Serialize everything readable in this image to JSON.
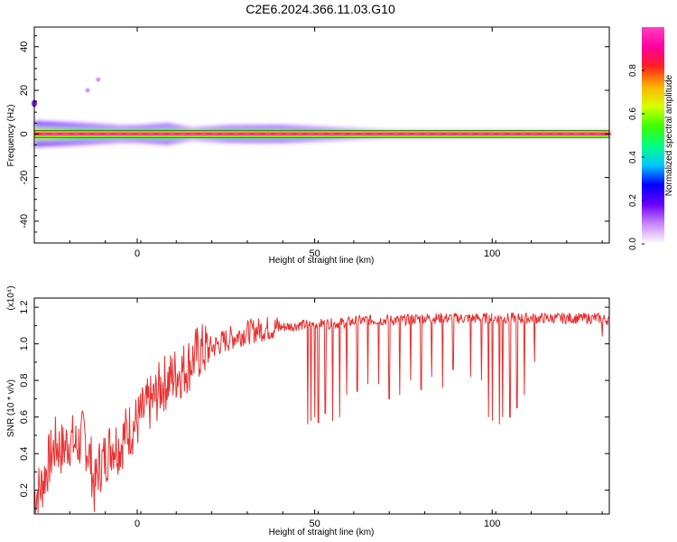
{
  "figure_title": "C2E6.2024.366.11.03.G10",
  "chart_data": [
    {
      "type": "heatmap",
      "xlabel": "Height of straight line (km)",
      "ylabel": "Frequency (Hz)",
      "xlim": [
        -29,
        133
      ],
      "ylim": [
        -50,
        49
      ],
      "x_ticks": [
        0,
        50,
        100
      ],
      "y_ticks": [
        40,
        20,
        0,
        -20,
        -40
      ],
      "colorbar": {
        "label": "Normalized spectral amplitude",
        "range": [
          0.0,
          1.0
        ],
        "ticks": [
          0.0,
          0.2,
          0.4,
          0.6,
          0.8
        ],
        "colors": [
          "#ffffff",
          "#cc88ff",
          "#6a00ff",
          "#0000ff",
          "#00c8ff",
          "#00ff80",
          "#40ff00",
          "#d8ff00",
          "#ffb000",
          "#ff2020",
          "#ff00a0",
          "#ff40c0"
        ]
      },
      "ridge": {
        "frequency": 0,
        "value": 0.95
      },
      "spectral_spread": [
        {
          "x": -29,
          "halfwidth": 6,
          "amp": 0.45
        },
        {
          "x": -15,
          "halfwidth": 5,
          "amp": 0.35
        },
        {
          "x": -5,
          "halfwidth": 4,
          "amp": 0.3
        },
        {
          "x": 0,
          "halfwidth": 4,
          "amp": 0.35
        },
        {
          "x": 8,
          "halfwidth": 5,
          "amp": 0.35
        },
        {
          "x": 15,
          "halfwidth": 3,
          "amp": 0.25
        },
        {
          "x": 25,
          "halfwidth": 4,
          "amp": 0.35
        },
        {
          "x": 40,
          "halfwidth": 4,
          "amp": 0.4
        },
        {
          "x": 55,
          "halfwidth": 3,
          "amp": 0.3
        },
        {
          "x": 70,
          "halfwidth": 2,
          "amp": 0.2
        },
        {
          "x": 90,
          "halfwidth": 2,
          "amp": 0.15
        },
        {
          "x": 133,
          "halfwidth": 2,
          "amp": 0.1
        }
      ],
      "spots": [
        {
          "x": -29,
          "y": 14
        },
        {
          "x": -14,
          "y": 20
        },
        {
          "x": -11,
          "y": 25
        }
      ]
    },
    {
      "type": "line",
      "xlabel": "Height of straight line (km)",
      "ylabel": "SNR (10 * v/v)",
      "y_multiplier": "(x10⁴)",
      "xlim": [
        -29,
        133
      ],
      "ylim": [
        0.07,
        1.25
      ],
      "x_ticks": [
        0,
        50,
        100
      ],
      "y_ticks": [
        0.2,
        0.4,
        0.6,
        0.8,
        1.0,
        1.2
      ],
      "series": [
        {
          "color": "#e83030",
          "x": [
            -29,
            -27,
            -25,
            -23,
            -21,
            -19,
            -17,
            -15,
            -13,
            -12,
            -11,
            -9,
            -7,
            -5,
            -3,
            -1,
            1,
            3,
            5,
            7,
            9,
            11,
            13,
            15,
            17,
            20,
            25,
            30,
            35,
            40,
            45,
            50,
            55,
            60,
            65,
            70,
            75,
            80,
            85,
            90,
            95,
            100,
            105,
            110,
            115,
            120,
            125,
            130,
            133
          ],
          "values": [
            0.17,
            0.22,
            0.35,
            0.45,
            0.42,
            0.48,
            0.44,
            0.5,
            0.35,
            0.2,
            0.32,
            0.38,
            0.46,
            0.44,
            0.52,
            0.55,
            0.6,
            0.66,
            0.7,
            0.78,
            0.8,
            0.84,
            0.86,
            0.9,
            0.95,
            0.97,
            1.02,
            1.06,
            1.08,
            1.09,
            1.1,
            1.11,
            1.11,
            1.12,
            1.13,
            1.13,
            1.13,
            1.14,
            1.14,
            1.14,
            1.14,
            1.14,
            1.14,
            1.14,
            1.14,
            1.14,
            1.14,
            1.14,
            1.13
          ],
          "dips": [
            {
              "x": 48,
              "y": 0.56
            },
            {
              "x": 49,
              "y": 0.58
            },
            {
              "x": 50,
              "y": 0.6
            },
            {
              "x": 51,
              "y": 0.57
            },
            {
              "x": 53,
              "y": 0.62
            },
            {
              "x": 55,
              "y": 0.58
            },
            {
              "x": 57,
              "y": 0.6
            },
            {
              "x": 59,
              "y": 0.72
            },
            {
              "x": 62,
              "y": 0.74
            },
            {
              "x": 65,
              "y": 0.78
            },
            {
              "x": 68,
              "y": 0.78
            },
            {
              "x": 71,
              "y": 0.7
            },
            {
              "x": 74,
              "y": 0.72
            },
            {
              "x": 77,
              "y": 0.8
            },
            {
              "x": 80,
              "y": 0.75
            },
            {
              "x": 83,
              "y": 0.82
            },
            {
              "x": 86,
              "y": 0.76
            },
            {
              "x": 89,
              "y": 0.86
            },
            {
              "x": 94,
              "y": 0.82
            },
            {
              "x": 97,
              "y": 0.8
            },
            {
              "x": 99,
              "y": 0.6
            },
            {
              "x": 100,
              "y": 0.58
            },
            {
              "x": 102,
              "y": 0.56
            },
            {
              "x": 103,
              "y": 0.6
            },
            {
              "x": 105,
              "y": 0.6
            },
            {
              "x": 107,
              "y": 0.65
            },
            {
              "x": 109,
              "y": 0.72
            },
            {
              "x": 112,
              "y": 0.9
            },
            {
              "x": 131,
              "y": 1.04
            },
            {
              "x": 133,
              "y": 0.98
            }
          ]
        }
      ]
    }
  ]
}
